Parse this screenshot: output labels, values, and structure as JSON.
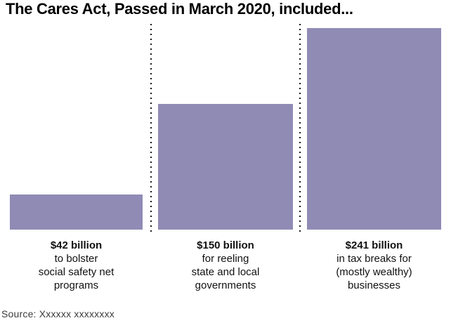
{
  "title": "The Cares Act, Passed in March 2020, included...",
  "source": "Source: Xxxxxx xxxxxxxx",
  "colors": {
    "background": "#ffffff",
    "bar": "#8F8BB5",
    "title": "#000000",
    "label": "#111111",
    "source": "#3c3c3c",
    "dot": "#1a1a1a"
  },
  "chart_data": {
    "type": "bar",
    "title": "The Cares Act, Passed in March 2020, included...",
    "unit": "billions of US dollars",
    "categories": [
      "social safety net programs",
      "state and local governments",
      "tax breaks for (mostly wealthy) businesses"
    ],
    "values": [
      42,
      150,
      241
    ],
    "ylim": [
      0,
      241
    ],
    "grid": false,
    "legend": "none",
    "bars": [
      {
        "value": 42,
        "value_label": "$42 billion",
        "desc_lines": [
          "to bolster",
          "social safety net",
          "programs"
        ]
      },
      {
        "value": 150,
        "value_label": "$150 billion",
        "desc_lines": [
          "for reeling",
          "state and local",
          "governments"
        ]
      },
      {
        "value": 241,
        "value_label": "$241 billion",
        "desc_lines": [
          "in tax breaks for",
          "(mostly wealthy)",
          "businesses"
        ]
      }
    ]
  }
}
